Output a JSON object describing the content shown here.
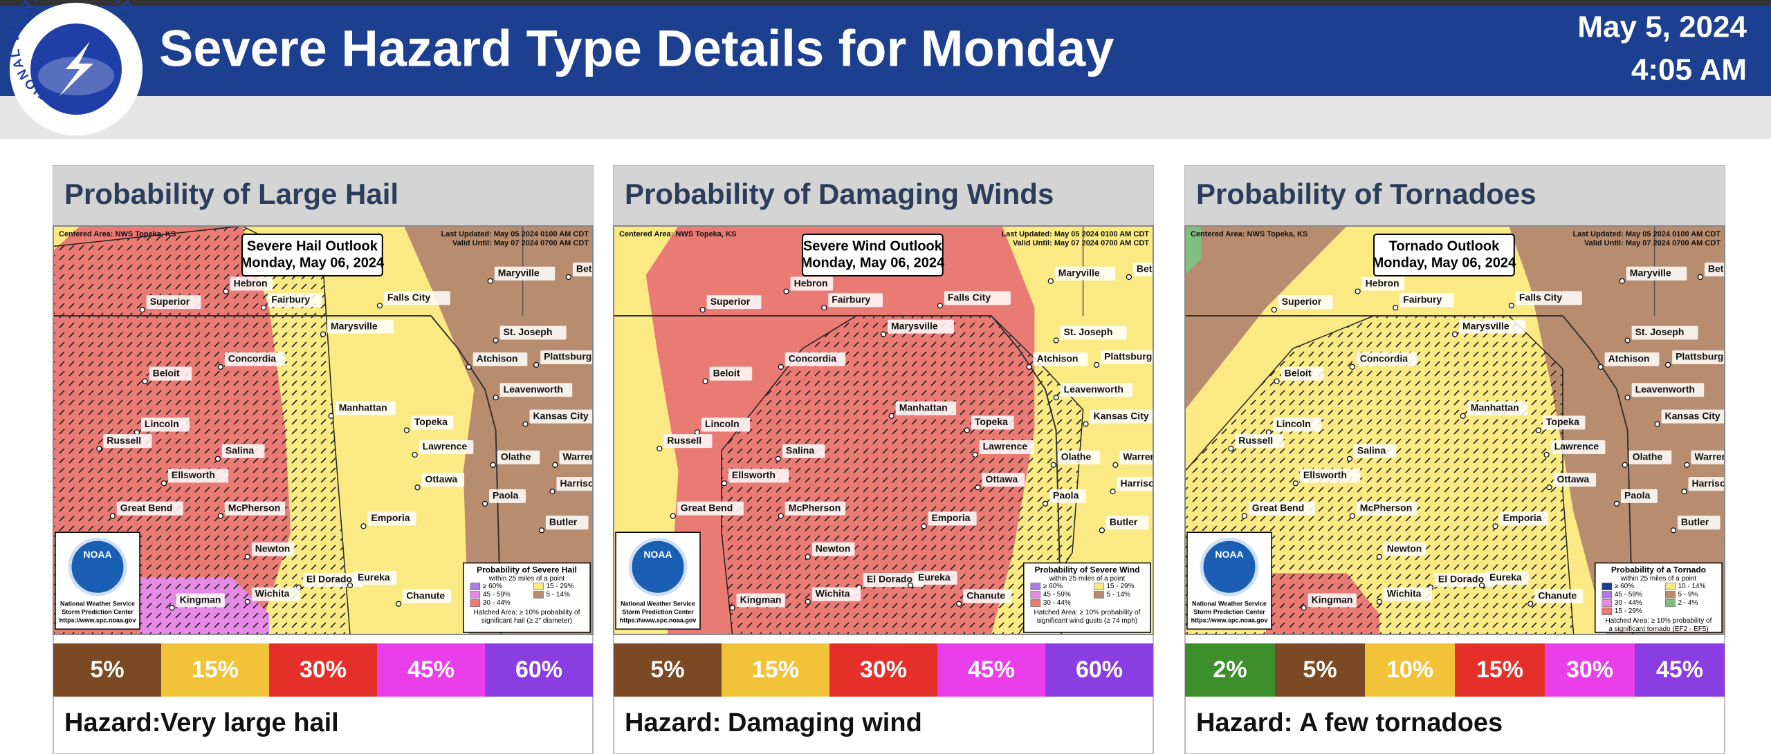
{
  "header": {
    "logo_text": "NATIONAL WEATHER SERVICE",
    "title": "Severe Hazard Type Details for Monday",
    "date": "May 5, 2024",
    "time": "4:05 AM"
  },
  "cities": [
    "Hebron",
    "Fairbury",
    "Superior",
    "Falls City",
    "Maryville",
    "Bethany",
    "Marysville",
    "St. Joseph",
    "Atchison",
    "Plattsburg",
    "Concordia",
    "Beloit",
    "Leavenworth",
    "Manhattan",
    "Kansas City",
    "Topeka",
    "Lincoln",
    "Russell",
    "Salina",
    "Lawrence",
    "Olathe",
    "Warrensburg",
    "Ellsworth",
    "Ottawa",
    "Harrisonville",
    "Great Bend",
    "McPherson",
    "Paola",
    "Emporia",
    "Butler",
    "Newton",
    "El Dorado",
    "Eureka",
    "Kingman",
    "Wichita",
    "Chanute"
  ],
  "map_common": {
    "centered": "Centered Area: NWS Topeka, KS",
    "updated": "Last Updated: May 05 2024 0100 AM CDT",
    "valid": "Valid Until: May 07 2024 0700 AM CDT",
    "outlook_date": "Monday, May 06, 2024",
    "noaa": "NOAA",
    "org1": "National Weather Service",
    "org2": "Storm Prediction Center",
    "url": "https://www.spc.noaa.gov"
  },
  "panels": [
    {
      "title": "Probability of Large Hail",
      "outlook_title": "Severe Hail Outlook",
      "legend_title": "Probability of Severe Hail",
      "legend_subtitle": "within 25 miles of a point",
      "legend_items": [
        {
          "label": "≥ 60%",
          "color": "#b07ae6"
        },
        {
          "label": "45 - 59%",
          "color": "#e68ae6"
        },
        {
          "label": "30 - 44%",
          "color": "#ea7a74"
        },
        {
          "label": "15 - 29%",
          "color": "#fbe983"
        },
        {
          "label": "5 - 14%",
          "color": "#b88c6e"
        }
      ],
      "legend_note": [
        "Hatched Area: ≥ 10% probability of",
        "significant hail (≥ 2\" diameter)"
      ],
      "scale": [
        {
          "label": "5%",
          "color": "#7b4a24"
        },
        {
          "label": "15%",
          "color": "#f2c339"
        },
        {
          "label": "30%",
          "color": "#e5302a"
        },
        {
          "label": "45%",
          "color": "#ea3ee8"
        },
        {
          "label": "60%",
          "color": "#8a3de0"
        }
      ],
      "hazard_label": "Hazard:",
      "hazard": "Very large hail"
    },
    {
      "title": "Probability of Damaging Winds",
      "outlook_title": "Severe Wind Outlook",
      "legend_title": "Probability of Severe Wind",
      "legend_subtitle": "within 25 miles of a point",
      "legend_items": [
        {
          "label": "≥ 60%",
          "color": "#b07ae6"
        },
        {
          "label": "45 - 59%",
          "color": "#e68ae6"
        },
        {
          "label": "30 - 44%",
          "color": "#ea7a74"
        },
        {
          "label": "15 - 29%",
          "color": "#fbe983"
        },
        {
          "label": "5 - 14%",
          "color": "#b88c6e"
        }
      ],
      "legend_note": [
        "Hatched Area: ≥ 10% probability of",
        "significant wind gusts (≥ 74 mph)"
      ],
      "scale": [
        {
          "label": "5%",
          "color": "#7b4a24"
        },
        {
          "label": "15%",
          "color": "#f2c339"
        },
        {
          "label": "30%",
          "color": "#e5302a"
        },
        {
          "label": "45%",
          "color": "#ea3ee8"
        },
        {
          "label": "60%",
          "color": "#8a3de0"
        }
      ],
      "hazard_label": "Hazard:",
      "hazard": "Damaging wind"
    },
    {
      "title": "Probability of Tornadoes",
      "outlook_title": "Tornado Outlook",
      "legend_title": "Probability of a Tornado",
      "legend_subtitle": "within 25 miles of a point",
      "legend_items": [
        {
          "label": "≥ 60%",
          "color": "#1d3f8f"
        },
        {
          "label": "45 - 59%",
          "color": "#b07ae6"
        },
        {
          "label": "30 - 44%",
          "color": "#e68ae6"
        },
        {
          "label": "15 - 29%",
          "color": "#ea7a74"
        },
        {
          "label": "10 - 14%",
          "color": "#fbe983"
        },
        {
          "label": "5 - 9%",
          "color": "#b88c6e"
        },
        {
          "label": "2 - 4%",
          "color": "#7fbf7f"
        }
      ],
      "legend_note": [
        "Hatched Area: ≥ 10% probability of",
        "a significant tornado (EF2 - EF5)"
      ],
      "scale": [
        {
          "label": "2%",
          "color": "#3c8f2b"
        },
        {
          "label": "5%",
          "color": "#7b4a24"
        },
        {
          "label": "10%",
          "color": "#f2c339"
        },
        {
          "label": "15%",
          "color": "#e5302a"
        },
        {
          "label": "30%",
          "color": "#ea3ee8"
        },
        {
          "label": "45%",
          "color": "#8a3de0"
        }
      ],
      "hazard_label": "Hazard:",
      "hazard": "A few tornadoes"
    }
  ]
}
